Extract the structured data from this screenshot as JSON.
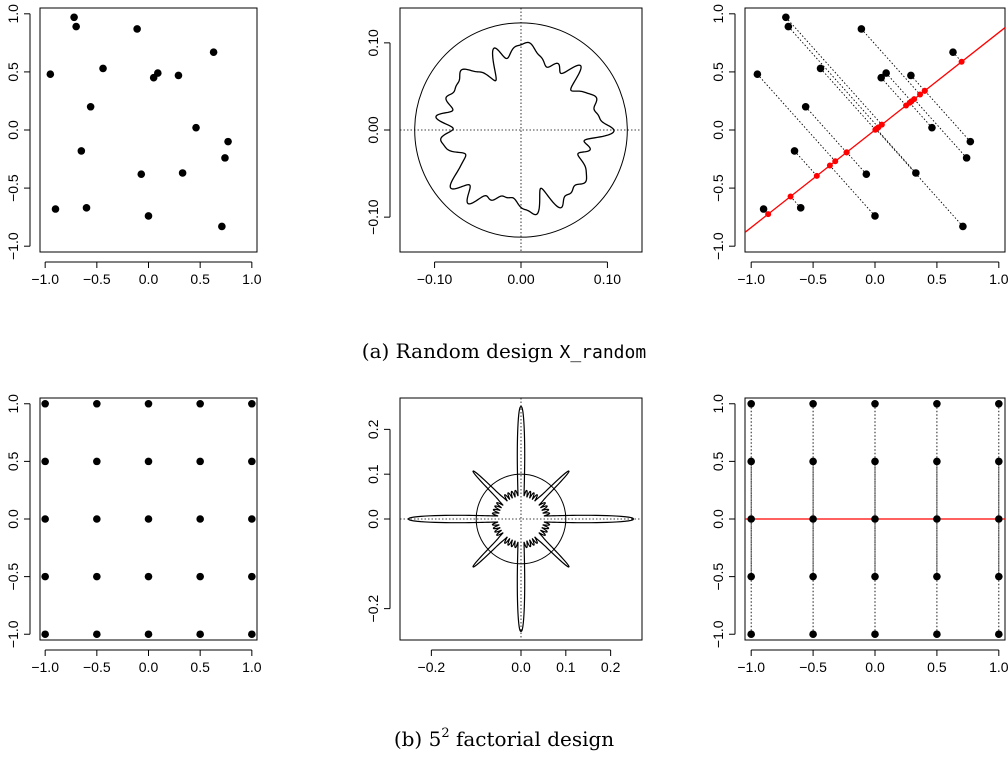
{
  "captions": {
    "a": {
      "prefix": "(a) Random design ",
      "code": "X_random"
    },
    "b": {
      "prefix": "(b) ",
      "base": "5",
      "sup": "2",
      "suffix": " factorial design"
    }
  },
  "colors": {
    "point": "#000000",
    "projection_line": "#ff0000",
    "projection_point": "#ff0000"
  },
  "chart_data": [
    {
      "id": "a1",
      "type": "scatter",
      "xlim": [
        -1.05,
        1.05
      ],
      "ylim": [
        -1.05,
        1.05
      ],
      "xticks": [
        -1.0,
        -0.5,
        0.0,
        0.5,
        1.0
      ],
      "xtick_labels": [
        "−1.0",
        "−0.5",
        "0.0",
        "0.5",
        "1.0"
      ],
      "yticks": [
        -1.0,
        -0.5,
        0.0,
        0.5,
        1.0
      ],
      "ytick_labels": [
        "−1.0",
        "−0.5",
        "0.0",
        "0.5",
        "1.0"
      ],
      "points": [
        [
          -0.95,
          0.48
        ],
        [
          -0.9,
          -0.68
        ],
        [
          -0.72,
          0.97
        ],
        [
          -0.7,
          0.89
        ],
        [
          -0.65,
          -0.18
        ],
        [
          -0.6,
          -0.67
        ],
        [
          -0.56,
          0.2
        ],
        [
          -0.44,
          0.53
        ],
        [
          -0.11,
          0.87
        ],
        [
          -0.07,
          -0.38
        ],
        [
          0.0,
          -0.74
        ],
        [
          0.05,
          0.45
        ],
        [
          0.09,
          0.49
        ],
        [
          0.29,
          0.47
        ],
        [
          0.33,
          -0.37
        ],
        [
          0.46,
          0.02
        ],
        [
          0.63,
          0.67
        ],
        [
          0.71,
          -0.83
        ],
        [
          0.74,
          -0.24
        ],
        [
          0.77,
          -0.1
        ]
      ]
    },
    {
      "id": "a2",
      "type": "polar-line",
      "xlim": [
        -0.14,
        0.14
      ],
      "ylim": [
        -0.14,
        0.14
      ],
      "xticks": [
        -0.1,
        0.0,
        0.1
      ],
      "xtick_labels": [
        "−0.10",
        "0.00",
        "0.10"
      ],
      "yticks": [
        -0.1,
        0.0,
        0.1
      ],
      "ytick_labels": [
        "−0.10",
        "0.00",
        "0.10"
      ],
      "circle_radius": 0.123,
      "radius_base": 0.088,
      "radius_harmonics": [
        [
          5,
          0.006,
          0.4
        ],
        [
          8,
          0.006,
          1.1
        ],
        [
          13,
          0.005,
          2.3
        ],
        [
          17,
          0.005,
          0.7
        ],
        [
          23,
          0.004,
          1.9
        ],
        [
          29,
          0.003,
          2.8
        ]
      ]
    },
    {
      "id": "a3",
      "type": "scatter-projection",
      "xlim": [
        -1.05,
        1.05
      ],
      "ylim": [
        -1.05,
        1.05
      ],
      "xticks": [
        -1.0,
        -0.5,
        0.0,
        0.5,
        1.0
      ],
      "xtick_labels": [
        "−1.0",
        "−0.5",
        "0.0",
        "0.5",
        "1.0"
      ],
      "yticks": [
        -1.0,
        -0.5,
        0.0,
        0.5,
        1.0
      ],
      "ytick_labels": [
        "−1.0",
        "−0.5",
        "0.0",
        "0.5",
        "1.0"
      ],
      "direction_angle_deg": 40,
      "points": [
        [
          -0.95,
          0.48
        ],
        [
          -0.9,
          -0.68
        ],
        [
          -0.72,
          0.97
        ],
        [
          -0.7,
          0.89
        ],
        [
          -0.65,
          -0.18
        ],
        [
          -0.6,
          -0.67
        ],
        [
          -0.56,
          0.2
        ],
        [
          -0.44,
          0.53
        ],
        [
          -0.11,
          0.87
        ],
        [
          -0.07,
          -0.38
        ],
        [
          0.0,
          -0.74
        ],
        [
          0.05,
          0.45
        ],
        [
          0.09,
          0.49
        ],
        [
          0.29,
          0.47
        ],
        [
          0.33,
          -0.37
        ],
        [
          0.46,
          0.02
        ],
        [
          0.63,
          0.67
        ],
        [
          0.71,
          -0.83
        ],
        [
          0.74,
          -0.24
        ],
        [
          0.77,
          -0.1
        ]
      ]
    },
    {
      "id": "b1",
      "type": "scatter",
      "xlim": [
        -1.05,
        1.05
      ],
      "ylim": [
        -1.05,
        1.05
      ],
      "xticks": [
        -1.0,
        -0.5,
        0.0,
        0.5,
        1.0
      ],
      "xtick_labels": [
        "−1.0",
        "−0.5",
        "0.0",
        "0.5",
        "1.0"
      ],
      "yticks": [
        -1.0,
        -0.5,
        0.0,
        0.5,
        1.0
      ],
      "ytick_labels": [
        "−1.0",
        "−0.5",
        "0.0",
        "0.5",
        "1.0"
      ],
      "grid_levels": [
        -1.0,
        -0.5,
        0.0,
        0.5,
        1.0
      ]
    },
    {
      "id": "b2",
      "type": "polar-line",
      "xlim": [
        -0.27,
        0.27
      ],
      "ylim": [
        -0.27,
        0.27
      ],
      "xticks": [
        -0.2,
        0.0,
        0.1,
        0.2
      ],
      "xtick_labels": [
        "−0.2",
        "0.0",
        "0.1",
        "0.2"
      ],
      "yticks": [
        -0.2,
        0.0,
        0.1,
        0.2
      ],
      "ytick_labels": [
        "−0.2",
        "0.0",
        "0.1",
        "0.2"
      ],
      "circle_radius": 0.1,
      "star_long_axis": 0.25,
      "star_diagonal": 0.15,
      "star_inner": 0.05
    },
    {
      "id": "b3",
      "type": "scatter-projection",
      "xlim": [
        -1.05,
        1.05
      ],
      "ylim": [
        -1.05,
        1.05
      ],
      "xticks": [
        -1.0,
        -0.5,
        0.0,
        0.5,
        1.0
      ],
      "xtick_labels": [
        "−1.0",
        "−0.5",
        "0.0",
        "0.5",
        "1.0"
      ],
      "yticks": [
        -1.0,
        -0.5,
        0.0,
        0.5,
        1.0
      ],
      "ytick_labels": [
        "−1.0",
        "−0.5",
        "0.0",
        "0.5",
        "1.0"
      ],
      "direction_angle_deg": 0,
      "grid_levels": [
        -1.0,
        -0.5,
        0.0,
        0.5,
        1.0
      ]
    }
  ]
}
